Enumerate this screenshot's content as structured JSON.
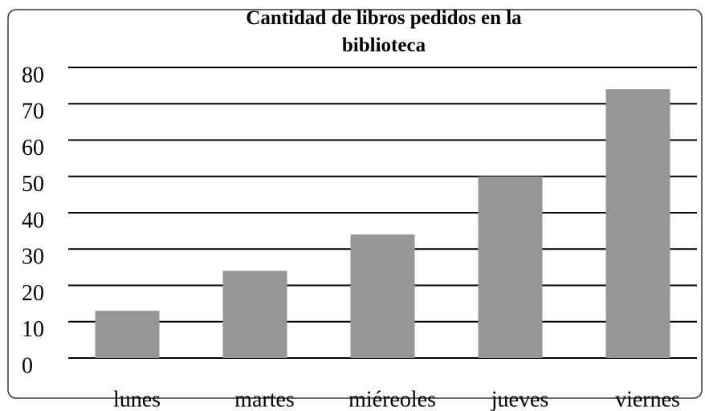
{
  "chart_data": {
    "type": "bar",
    "title": "Cantidad de libros pedidos en la biblioteca",
    "categories": [
      "lunes",
      "martes",
      "miéreoles",
      "jueves",
      "viernes"
    ],
    "values": [
      13,
      24,
      34,
      50,
      74
    ],
    "color": "#969696",
    "ylim": [
      0,
      80
    ],
    "yticks": [
      0,
      10,
      20,
      30,
      40,
      50,
      60,
      70,
      80
    ],
    "grid": true
  }
}
